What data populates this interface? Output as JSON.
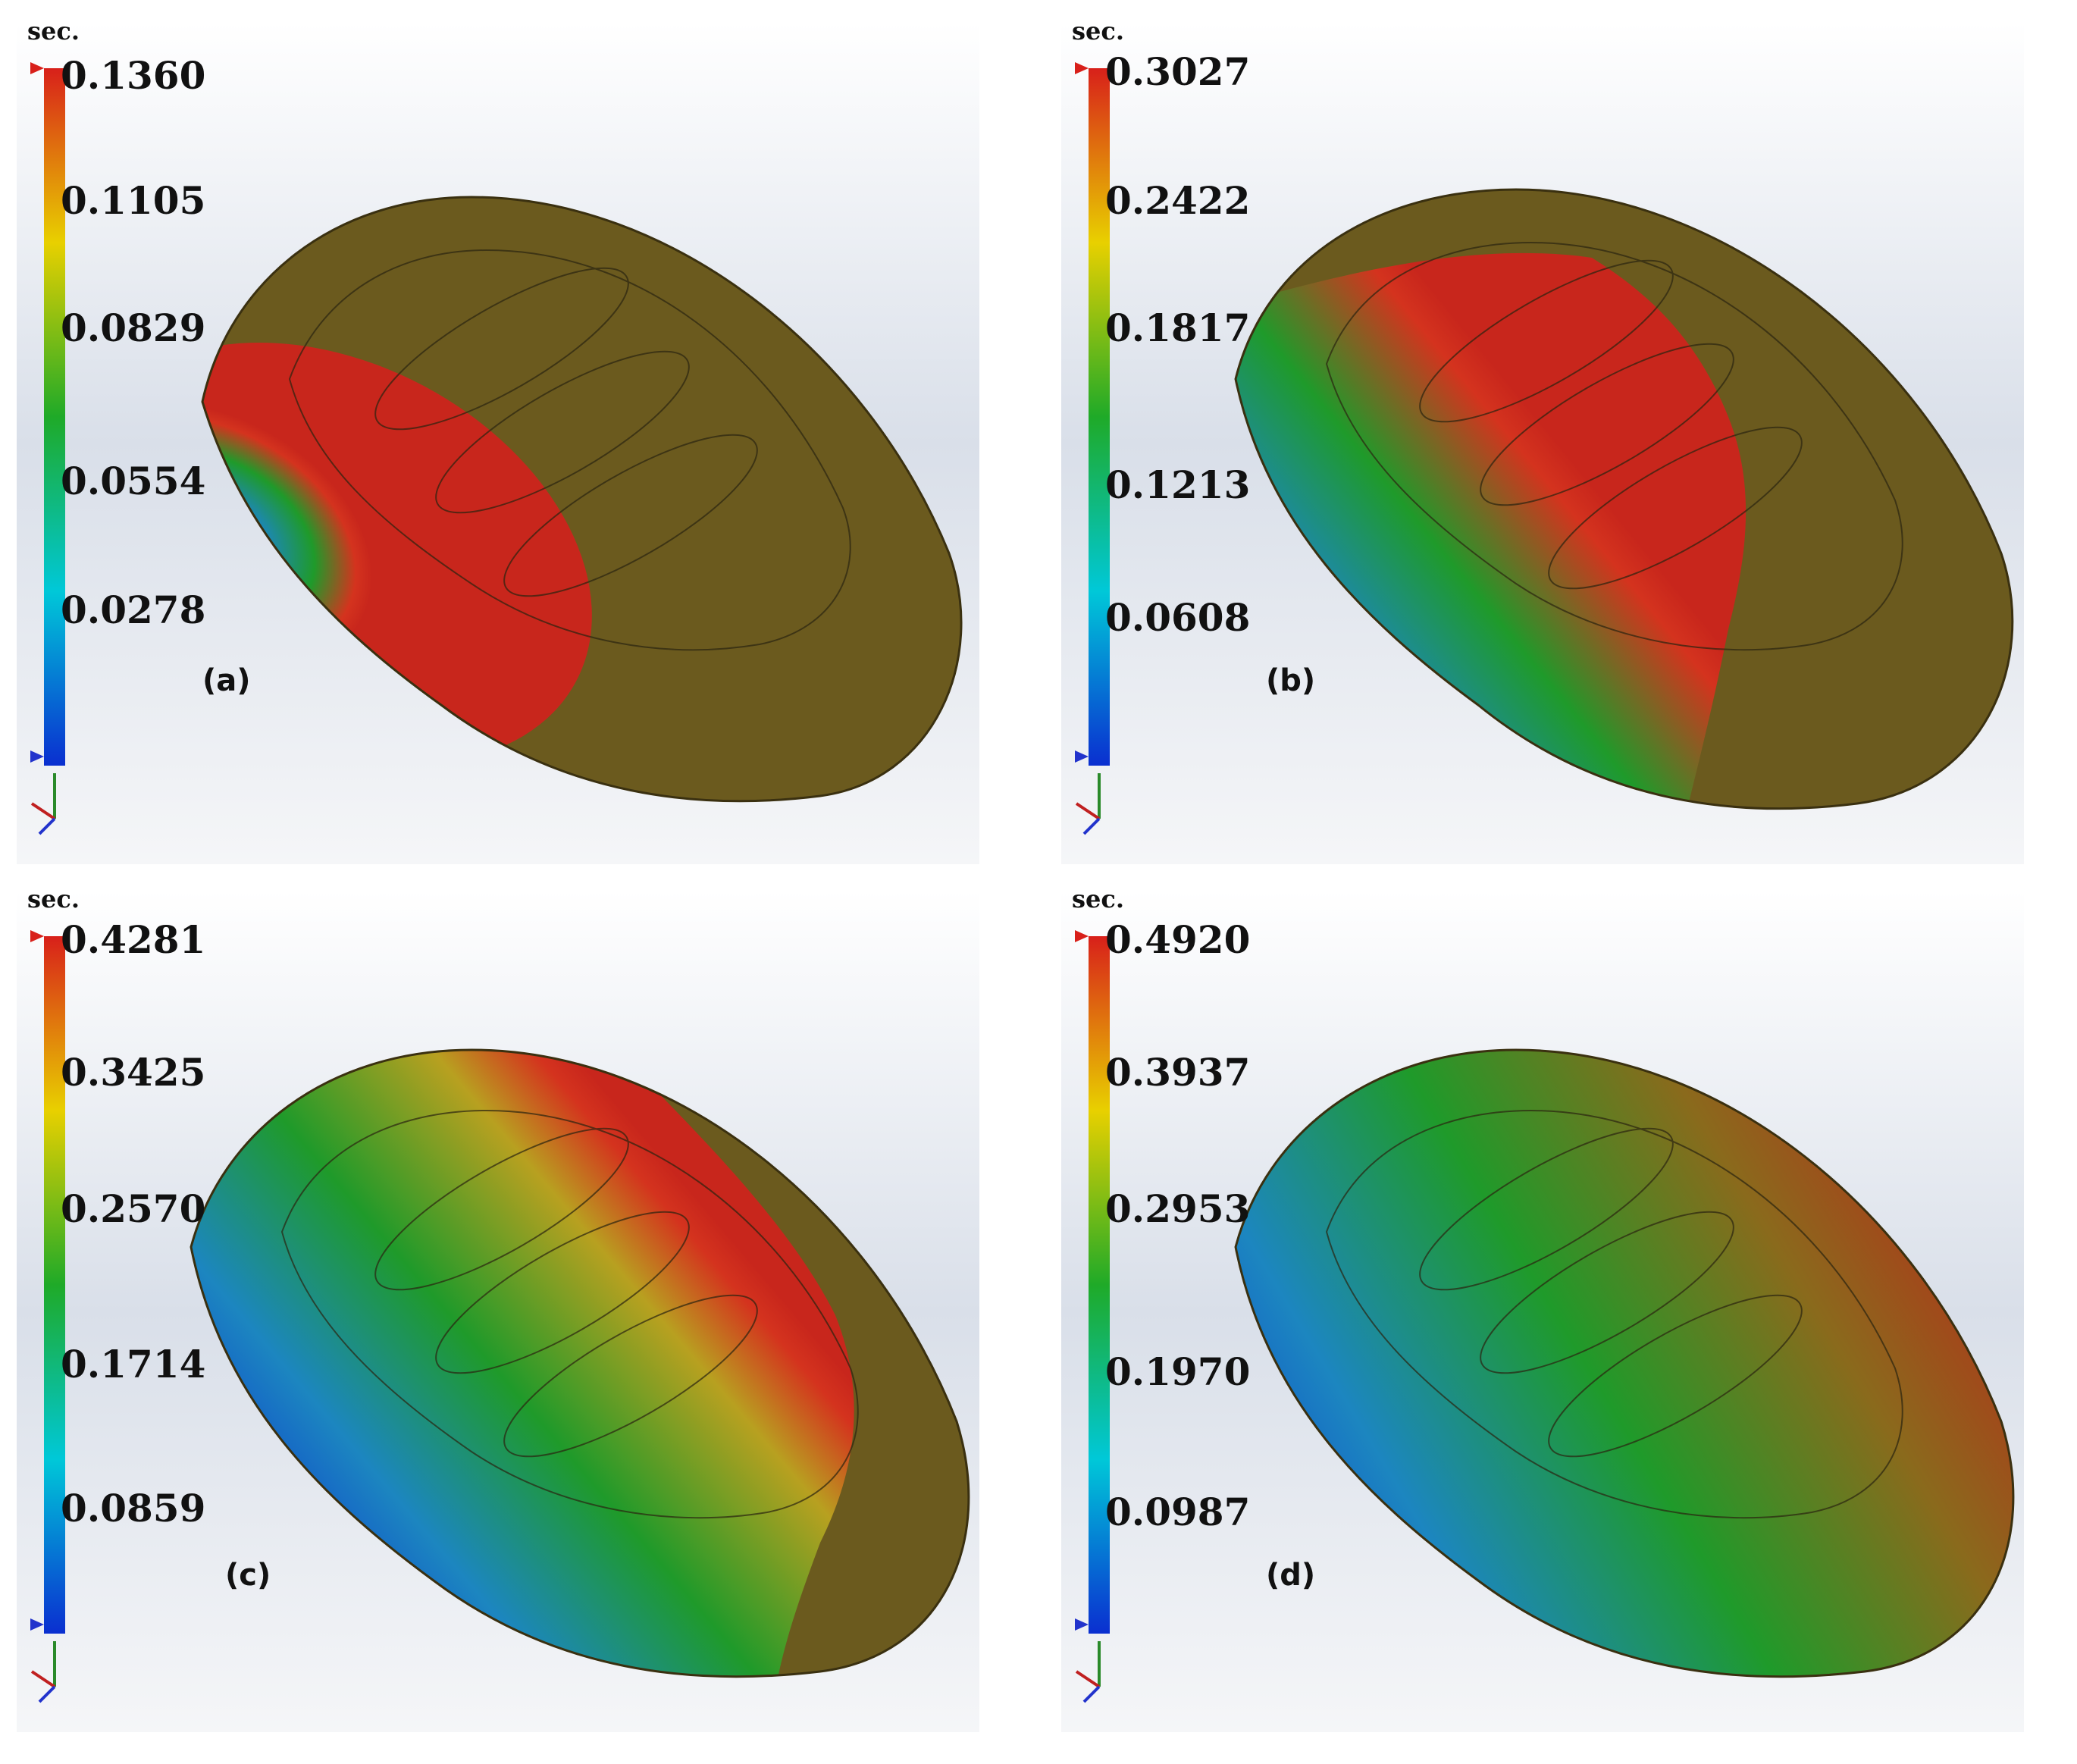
{
  "figure": {
    "panels": [
      {
        "id": "a",
        "label": "(a)",
        "unit": "sec.",
        "scale": [
          "0.1360",
          "0.1105",
          "0.0829",
          "0.0554",
          "0.0278"
        ],
        "fill_fraction": 0.28
      },
      {
        "id": "b",
        "label": "(b)",
        "unit": "sec.",
        "scale": [
          "0.3027",
          "0.2422",
          "0.1817",
          "0.1213",
          "0.0608"
        ],
        "fill_fraction": 0.62
      },
      {
        "id": "c",
        "label": "(c)",
        "unit": "sec.",
        "scale": [
          "0.4281",
          "0.3425",
          "0.2570",
          "0.1714",
          "0.0859"
        ],
        "fill_fraction": 0.87
      },
      {
        "id": "d",
        "label": "(d)",
        "unit": "sec.",
        "scale": [
          "0.4920",
          "0.3937",
          "0.2953",
          "0.1970",
          "0.0987"
        ],
        "fill_fraction": 1.0
      }
    ],
    "colors": {
      "unfilled": "#6b5a1e",
      "front": "#c8261c",
      "low": "#0a2fd0",
      "mid": "#1f9a2a",
      "high": "#d4331e"
    }
  }
}
